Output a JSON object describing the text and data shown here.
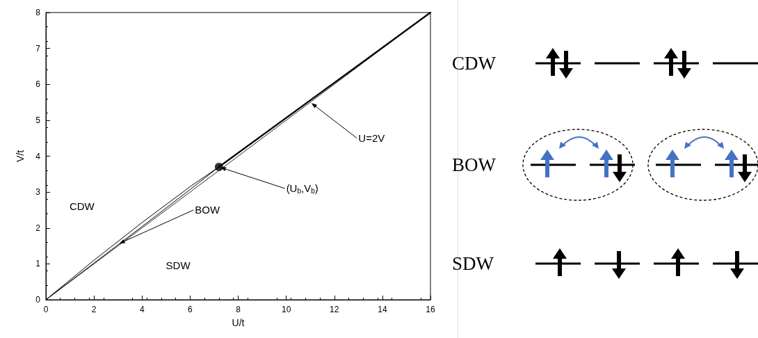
{
  "chart_data": {
    "type": "line",
    "xlabel": "U/t",
    "ylabel": "V/t",
    "xlim": [
      0,
      16
    ],
    "xticks": [
      0,
      2,
      4,
      6,
      8,
      10,
      12,
      14,
      16
    ],
    "ylim": [
      0,
      8
    ],
    "yticks": [
      0,
      1,
      2,
      3,
      4,
      5,
      6,
      7,
      8
    ],
    "grid": false,
    "series": [
      {
        "color": "#000000",
        "x": [
          0,
          2,
          4,
          6,
          7.2
        ],
        "values": [
          0,
          1.1,
          2.15,
          3.15,
          3.7
        ],
        "line_style": "solid"
      },
      {
        "color": "#000000",
        "x": [
          0,
          2,
          4,
          6,
          7.2
        ],
        "values": [
          0,
          1.02,
          2.04,
          3.07,
          3.7
        ],
        "line_style": "solid"
      },
      {
        "color": "#000000",
        "x": [
          7.2,
          16
        ],
        "values": [
          3.7,
          8
        ],
        "line_style": "solid"
      },
      {
        "color": "#000000",
        "x": [
          0,
          16
        ],
        "values": [
          0,
          8
        ],
        "line_style": "dotted"
      },
      {
        "type": "scatter",
        "color": "#000000",
        "x": [
          7.2
        ],
        "values": [
          3.7
        ],
        "marker": "circle"
      }
    ],
    "annotations": [
      "CDW",
      "SDW",
      {
        "text": "BOW",
        "x": 3,
        "y": 1.55
      },
      {
        "text": "U=2V",
        "x": 11,
        "y": 5.5
      },
      {
        "text": "(U$_{b}$,V$_{b}$)",
        "x": 7.2,
        "y": 3.7
      },
      "CDW",
      "BOW",
      "SDW"
    ]
  }
}
